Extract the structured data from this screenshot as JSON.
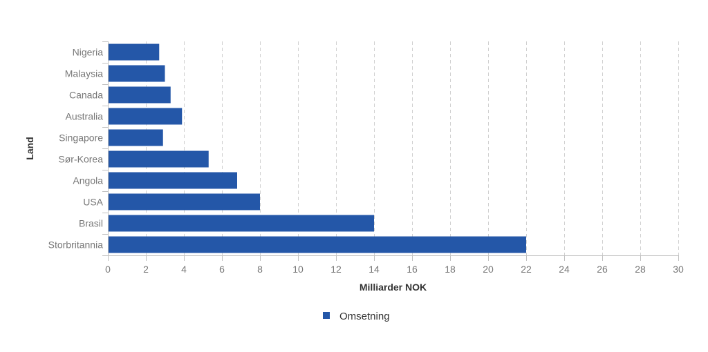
{
  "chart_data": {
    "type": "bar",
    "orientation": "horizontal",
    "title": "",
    "xlabel": "Milliarder NOK",
    "ylabel": "Land",
    "categories": [
      "Nigeria",
      "Malaysia",
      "Canada",
      "Australia",
      "Singapore",
      "Sør-Korea",
      "Angola",
      "USA",
      "Brasil",
      "Storbritannia"
    ],
    "series": [
      {
        "name": "Omsetning",
        "values": [
          2.7,
          3.0,
          3.3,
          3.9,
          2.9,
          5.3,
          6.8,
          8.0,
          14.0,
          22.0
        ],
        "color": "#2457a8"
      }
    ],
    "xlim": [
      0,
      30
    ],
    "xticks": [
      0,
      2,
      4,
      6,
      8,
      10,
      12,
      14,
      16,
      18,
      20,
      22,
      24,
      26,
      28,
      30
    ],
    "grid": "vertical-dashed",
    "legend_position": "bottom-center"
  }
}
